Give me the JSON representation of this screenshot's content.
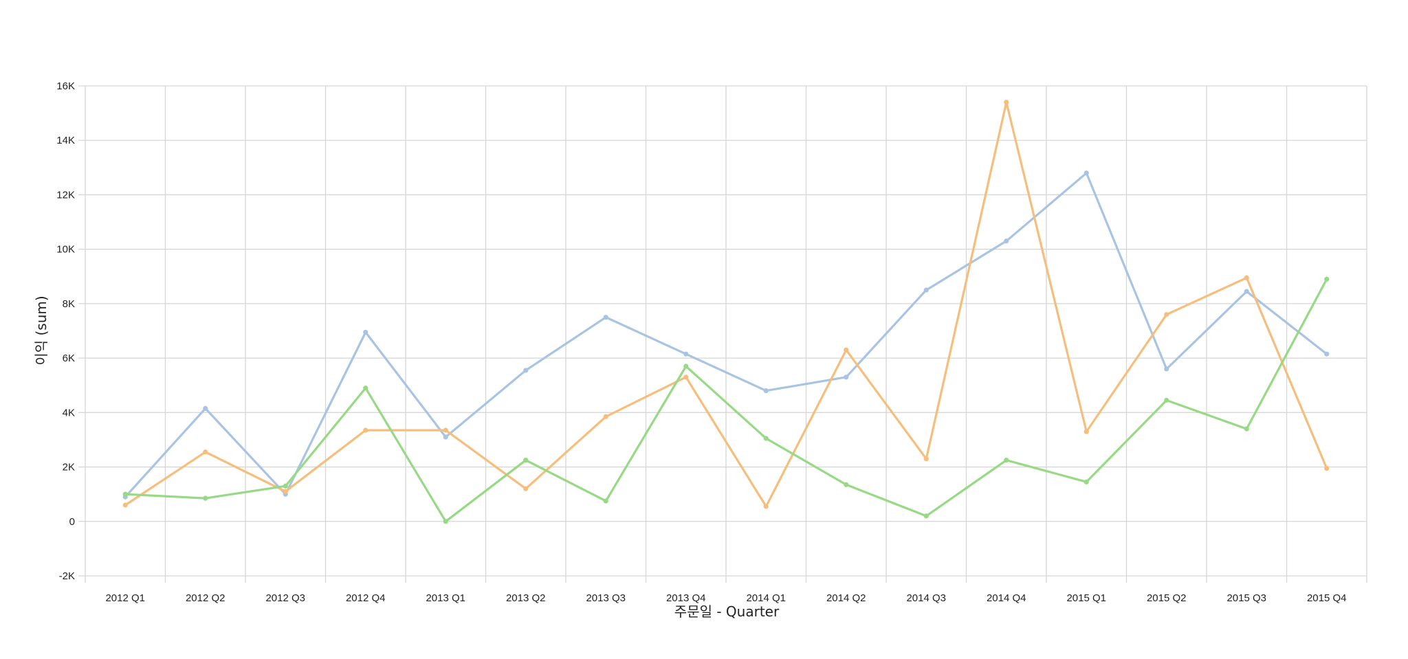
{
  "chart_data": {
    "type": "line",
    "xlabel": "주문일 - Quarter",
    "ylabel": "이익 (sum)",
    "ylim": [
      -2000,
      16000
    ],
    "yticks": [
      -2000,
      0,
      2000,
      4000,
      6000,
      8000,
      10000,
      12000,
      14000,
      16000
    ],
    "ytick_labels": [
      "-2K",
      "0",
      "2K",
      "4K",
      "6K",
      "8K",
      "10K",
      "12K",
      "14K",
      "16K"
    ],
    "grid": true,
    "legend": "none",
    "categories": [
      "2012 Q1",
      "2012 Q2",
      "2012 Q3",
      "2012 Q4",
      "2013 Q1",
      "2013 Q2",
      "2013 Q3",
      "2013 Q4",
      "2014 Q1",
      "2014 Q2",
      "2014 Q3",
      "2014 Q4",
      "2015 Q1",
      "2015 Q2",
      "2015 Q3",
      "2015 Q4"
    ],
    "series": [
      {
        "color": "#a9c4e3",
        "values": [
          900,
          4150,
          1000,
          6950,
          3100,
          5550,
          7500,
          6150,
          4800,
          5300,
          8500,
          10300,
          12800,
          5600,
          8450,
          6150
        ]
      },
      {
        "color": "#f6be7c",
        "values": [
          600,
          2550,
          1100,
          3350,
          3350,
          1200,
          3850,
          5300,
          550,
          6300,
          2300,
          15400,
          3300,
          7600,
          8950,
          1950
        ]
      },
      {
        "color": "#97d985",
        "values": [
          1000,
          850,
          1300,
          4900,
          0,
          2250,
          750,
          5700,
          3050,
          1350,
          200,
          2250,
          1450,
          4450,
          3400,
          8900
        ]
      }
    ]
  }
}
